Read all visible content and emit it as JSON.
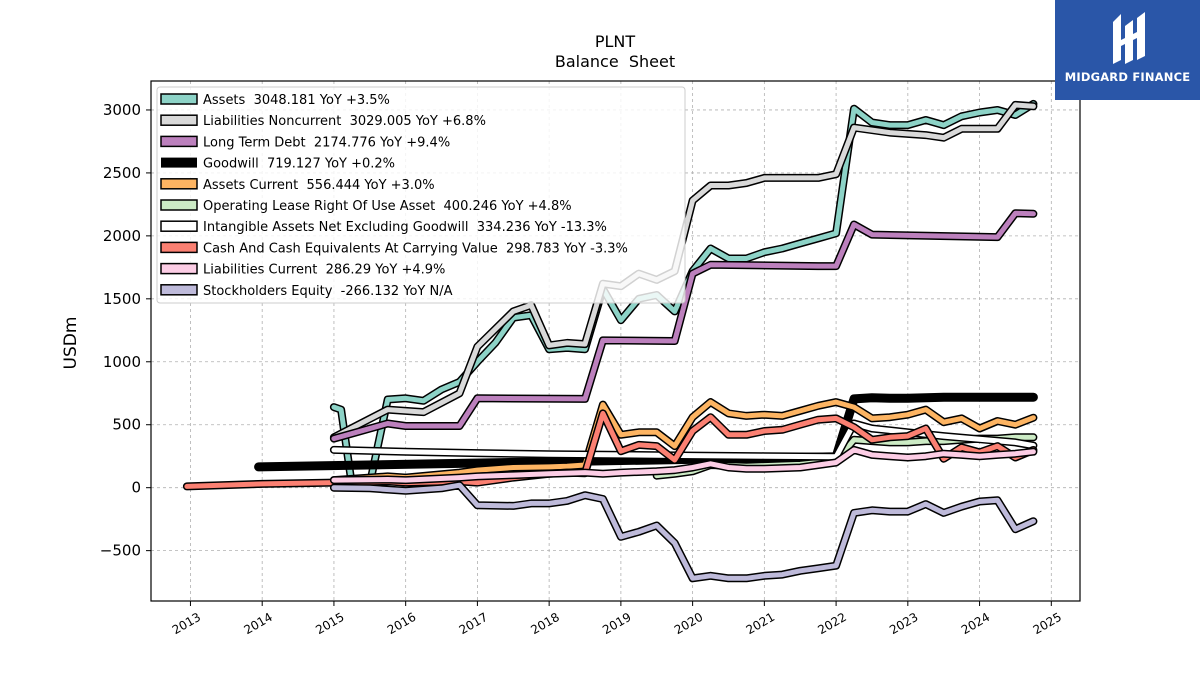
{
  "brand": {
    "name": "MIDGARD FINANCE",
    "bg_color": "#2a56a8"
  },
  "chart_data": {
    "type": "line",
    "title": "PLNT",
    "subtitle": "Balance  Sheet",
    "xlabel": "",
    "ylabel": "USDm",
    "xlim": [
      2012.45,
      2025.4
    ],
    "ylim": [
      -900,
      3230
    ],
    "x_ticks": [
      2013,
      2014,
      2015,
      2016,
      2017,
      2018,
      2019,
      2020,
      2021,
      2022,
      2023,
      2024,
      2025
    ],
    "y_ticks": [
      -500,
      0,
      500,
      1000,
      1500,
      2000,
      2500,
      3000
    ],
    "grid": true,
    "legend_position": "top-left",
    "series": [
      {
        "name": "Assets",
        "legend": "Assets  3048.181 YoY +3.5%",
        "color": "#8dd3c7",
        "width": 5,
        "points": [
          [
            2015.0,
            640
          ],
          [
            2015.1,
            620
          ],
          [
            2015.25,
            20
          ],
          [
            2015.5,
            30
          ],
          [
            2015.75,
            700
          ],
          [
            2016.0,
            710
          ],
          [
            2016.25,
            690
          ],
          [
            2016.5,
            780
          ],
          [
            2016.75,
            840
          ],
          [
            2017.0,
            1000
          ],
          [
            2017.25,
            1150
          ],
          [
            2017.5,
            1350
          ],
          [
            2017.75,
            1370
          ],
          [
            2018.0,
            1100
          ],
          [
            2018.25,
            1110
          ],
          [
            2018.5,
            1100
          ],
          [
            2018.75,
            1580
          ],
          [
            2019.0,
            1330
          ],
          [
            2019.25,
            1500
          ],
          [
            2019.5,
            1530
          ],
          [
            2019.75,
            1400
          ],
          [
            2020.0,
            1720
          ],
          [
            2020.25,
            1900
          ],
          [
            2020.5,
            1820
          ],
          [
            2020.75,
            1820
          ],
          [
            2021.0,
            1870
          ],
          [
            2021.25,
            1900
          ],
          [
            2021.5,
            1940
          ],
          [
            2021.75,
            1980
          ],
          [
            2022.0,
            2020
          ],
          [
            2022.25,
            3010
          ],
          [
            2022.5,
            2900
          ],
          [
            2022.75,
            2880
          ],
          [
            2023.0,
            2880
          ],
          [
            2023.25,
            2920
          ],
          [
            2023.5,
            2880
          ],
          [
            2023.75,
            2950
          ],
          [
            2024.0,
            2980
          ],
          [
            2024.25,
            3000
          ],
          [
            2024.5,
            2960
          ],
          [
            2024.75,
            3048
          ]
        ]
      },
      {
        "name": "Liabilities Noncurrent",
        "legend": "Liabilities Noncurrent  3029.005 YoY +6.8%",
        "color": "#d9d9d9",
        "width": 5,
        "points": [
          [
            2015.0,
            400
          ],
          [
            2015.75,
            620
          ],
          [
            2016.25,
            600
          ],
          [
            2016.75,
            750
          ],
          [
            2017.0,
            1120
          ],
          [
            2017.5,
            1400
          ],
          [
            2017.75,
            1450
          ],
          [
            2018.0,
            1130
          ],
          [
            2018.25,
            1150
          ],
          [
            2018.5,
            1140
          ],
          [
            2018.75,
            1620
          ],
          [
            2019.0,
            1600
          ],
          [
            2019.25,
            1700
          ],
          [
            2019.5,
            1650
          ],
          [
            2019.75,
            1720
          ],
          [
            2020.0,
            2280
          ],
          [
            2020.25,
            2400
          ],
          [
            2020.5,
            2400
          ],
          [
            2020.75,
            2420
          ],
          [
            2021.0,
            2460
          ],
          [
            2021.25,
            2460
          ],
          [
            2021.5,
            2460
          ],
          [
            2021.75,
            2460
          ],
          [
            2022.0,
            2490
          ],
          [
            2022.25,
            2860
          ],
          [
            2022.5,
            2840
          ],
          [
            2022.75,
            2820
          ],
          [
            2023.0,
            2810
          ],
          [
            2023.25,
            2800
          ],
          [
            2023.5,
            2780
          ],
          [
            2023.75,
            2850
          ],
          [
            2024.0,
            2850
          ],
          [
            2024.25,
            2850
          ],
          [
            2024.5,
            3040
          ],
          [
            2024.75,
            3029
          ]
        ]
      },
      {
        "name": "Long Term Debt",
        "legend": "Long Term Debt  2174.776 YoY +9.4%",
        "color": "#bc80bd",
        "width": 5,
        "points": [
          [
            2015.0,
            390
          ],
          [
            2015.75,
            510
          ],
          [
            2016.0,
            490
          ],
          [
            2016.75,
            490
          ],
          [
            2017.0,
            710
          ],
          [
            2018.5,
            705
          ],
          [
            2018.75,
            1170
          ],
          [
            2019.75,
            1165
          ],
          [
            2020.0,
            1700
          ],
          [
            2020.25,
            1770
          ],
          [
            2021.75,
            1760
          ],
          [
            2022.0,
            1760
          ],
          [
            2022.25,
            2090
          ],
          [
            2022.5,
            2010
          ],
          [
            2024.25,
            1990
          ],
          [
            2024.5,
            2180
          ],
          [
            2024.75,
            2175
          ]
        ]
      },
      {
        "name": "Goodwill",
        "legend": "Goodwill  719.127 YoY +0.2%",
        "color": "#000000",
        "width": 9,
        "no_outline": true,
        "points": [
          [
            2013.95,
            165
          ],
          [
            2022.0,
            245
          ],
          [
            2022.25,
            705
          ],
          [
            2022.5,
            715
          ],
          [
            2022.75,
            710
          ],
          [
            2023.0,
            710
          ],
          [
            2023.5,
            718
          ],
          [
            2024.0,
            718
          ],
          [
            2024.75,
            719
          ]
        ]
      },
      {
        "name": "Assets Current",
        "legend": "Assets Current  556.444 YoY +3.0%",
        "color": "#fdb462",
        "width": 5,
        "points": [
          [
            2015.0,
            60
          ],
          [
            2015.75,
            90
          ],
          [
            2016.0,
            80
          ],
          [
            2016.75,
            120
          ],
          [
            2017.0,
            140
          ],
          [
            2017.5,
            160
          ],
          [
            2018.0,
            165
          ],
          [
            2018.25,
            170
          ],
          [
            2018.5,
            180
          ],
          [
            2018.75,
            660
          ],
          [
            2019.0,
            420
          ],
          [
            2019.25,
            440
          ],
          [
            2019.5,
            440
          ],
          [
            2019.75,
            330
          ],
          [
            2020.0,
            560
          ],
          [
            2020.25,
            680
          ],
          [
            2020.5,
            590
          ],
          [
            2020.75,
            570
          ],
          [
            2021.0,
            580
          ],
          [
            2021.25,
            570
          ],
          [
            2021.5,
            610
          ],
          [
            2021.75,
            650
          ],
          [
            2022.0,
            680
          ],
          [
            2022.25,
            640
          ],
          [
            2022.5,
            550
          ],
          [
            2022.75,
            560
          ],
          [
            2023.0,
            580
          ],
          [
            2023.25,
            620
          ],
          [
            2023.5,
            520
          ],
          [
            2023.75,
            550
          ],
          [
            2024.0,
            470
          ],
          [
            2024.25,
            530
          ],
          [
            2024.5,
            500
          ],
          [
            2024.75,
            556
          ]
        ]
      },
      {
        "name": "Operating Lease Right Of Use Asset",
        "legend": "Operating Lease Right Of Use Asset  400.246 YoY +4.8%",
        "color": "#ccebc5",
        "width": 5,
        "points": [
          [
            2019.5,
            95
          ],
          [
            2019.75,
            110
          ],
          [
            2020.0,
            130
          ],
          [
            2020.25,
            180
          ],
          [
            2020.5,
            175
          ],
          [
            2020.75,
            170
          ],
          [
            2021.0,
            175
          ],
          [
            2021.25,
            180
          ],
          [
            2021.5,
            185
          ],
          [
            2021.75,
            200
          ],
          [
            2022.0,
            210
          ],
          [
            2022.25,
            380
          ],
          [
            2022.5,
            370
          ],
          [
            2022.75,
            360
          ],
          [
            2023.0,
            360
          ],
          [
            2023.25,
            370
          ],
          [
            2023.5,
            370
          ],
          [
            2023.75,
            380
          ],
          [
            2024.0,
            390
          ],
          [
            2024.25,
            390
          ],
          [
            2024.5,
            400
          ],
          [
            2024.75,
            400
          ]
        ]
      },
      {
        "name": "Intangible Assets Net Excluding Goodwill",
        "legend": "Intangible Assets Net Excluding Goodwill  334.236 YoY -13.3%",
        "color": "#ffffff",
        "width": 5,
        "points": [
          [
            2015.0,
            300
          ],
          [
            2016.0,
            285
          ],
          [
            2017.0,
            275
          ],
          [
            2018.0,
            265
          ],
          [
            2019.0,
            260
          ],
          [
            2020.0,
            255
          ],
          [
            2021.0,
            250
          ],
          [
            2022.0,
            245
          ],
          [
            2022.25,
            510
          ],
          [
            2022.5,
            470
          ],
          [
            2023.0,
            440
          ],
          [
            2023.5,
            410
          ],
          [
            2024.0,
            385
          ],
          [
            2024.5,
            360
          ],
          [
            2024.75,
            334
          ]
        ]
      },
      {
        "name": "Cash And Cash Equivalents At Carrying Value",
        "legend": "Cash And Cash Equivalents At Carrying Value  298.783 YoY -3.3%",
        "color": "#fb8072",
        "width": 5,
        "points": [
          [
            2012.95,
            10
          ],
          [
            2014.0,
            30
          ],
          [
            2015.0,
            40
          ],
          [
            2015.75,
            50
          ],
          [
            2016.0,
            40
          ],
          [
            2016.75,
            50
          ],
          [
            2017.0,
            40
          ],
          [
            2017.5,
            80
          ],
          [
            2018.0,
            110
          ],
          [
            2018.25,
            120
          ],
          [
            2018.5,
            115
          ],
          [
            2018.75,
            590
          ],
          [
            2019.0,
            290
          ],
          [
            2019.25,
            340
          ],
          [
            2019.5,
            330
          ],
          [
            2019.75,
            220
          ],
          [
            2020.0,
            450
          ],
          [
            2020.25,
            560
          ],
          [
            2020.5,
            420
          ],
          [
            2020.75,
            420
          ],
          [
            2021.0,
            450
          ],
          [
            2021.25,
            460
          ],
          [
            2021.5,
            500
          ],
          [
            2021.75,
            540
          ],
          [
            2022.0,
            550
          ],
          [
            2022.25,
            480
          ],
          [
            2022.5,
            380
          ],
          [
            2022.75,
            400
          ],
          [
            2023.0,
            410
          ],
          [
            2023.25,
            470
          ],
          [
            2023.5,
            230
          ],
          [
            2023.75,
            320
          ],
          [
            2024.0,
            280
          ],
          [
            2024.25,
            330
          ],
          [
            2024.5,
            240
          ],
          [
            2024.75,
            299
          ]
        ]
      },
      {
        "name": "Liabilities Current",
        "legend": "Liabilities Current  286.29 YoY +4.9%",
        "color": "#fccde5",
        "width": 5,
        "points": [
          [
            2015.0,
            60
          ],
          [
            2015.75,
            65
          ],
          [
            2016.0,
            60
          ],
          [
            2016.75,
            80
          ],
          [
            2017.0,
            90
          ],
          [
            2017.5,
            100
          ],
          [
            2018.0,
            110
          ],
          [
            2018.5,
            120
          ],
          [
            2018.75,
            110
          ],
          [
            2019.0,
            120
          ],
          [
            2019.5,
            130
          ],
          [
            2019.75,
            140
          ],
          [
            2020.0,
            160
          ],
          [
            2020.25,
            190
          ],
          [
            2020.5,
            160
          ],
          [
            2020.75,
            150
          ],
          [
            2021.0,
            150
          ],
          [
            2021.5,
            160
          ],
          [
            2021.75,
            180
          ],
          [
            2022.0,
            200
          ],
          [
            2022.25,
            300
          ],
          [
            2022.5,
            260
          ],
          [
            2022.75,
            250
          ],
          [
            2023.0,
            240
          ],
          [
            2023.25,
            250
          ],
          [
            2023.5,
            270
          ],
          [
            2023.75,
            260
          ],
          [
            2024.0,
            250
          ],
          [
            2024.25,
            260
          ],
          [
            2024.5,
            270
          ],
          [
            2024.75,
            286
          ]
        ]
      },
      {
        "name": "Stockholders Equity",
        "legend": "Stockholders Equity  -266.132 YoY N/A",
        "color": "#bebada",
        "width": 5,
        "points": [
          [
            2015.0,
            0
          ],
          [
            2015.5,
            -5
          ],
          [
            2016.0,
            -25
          ],
          [
            2016.5,
            -5
          ],
          [
            2016.75,
            20
          ],
          [
            2017.0,
            -140
          ],
          [
            2017.5,
            -145
          ],
          [
            2017.75,
            -125
          ],
          [
            2018.0,
            -125
          ],
          [
            2018.25,
            -105
          ],
          [
            2018.5,
            -60
          ],
          [
            2018.75,
            -90
          ],
          [
            2019.0,
            -390
          ],
          [
            2019.25,
            -350
          ],
          [
            2019.5,
            -300
          ],
          [
            2019.75,
            -440
          ],
          [
            2020.0,
            -720
          ],
          [
            2020.25,
            -700
          ],
          [
            2020.5,
            -720
          ],
          [
            2020.75,
            -720
          ],
          [
            2021.0,
            -700
          ],
          [
            2021.25,
            -690
          ],
          [
            2021.5,
            -660
          ],
          [
            2021.75,
            -640
          ],
          [
            2022.0,
            -620
          ],
          [
            2022.25,
            -200
          ],
          [
            2022.5,
            -180
          ],
          [
            2022.75,
            -190
          ],
          [
            2023.0,
            -190
          ],
          [
            2023.25,
            -130
          ],
          [
            2023.5,
            -200
          ],
          [
            2023.75,
            -150
          ],
          [
            2024.0,
            -110
          ],
          [
            2024.25,
            -100
          ],
          [
            2024.5,
            -330
          ],
          [
            2024.75,
            -266
          ]
        ]
      }
    ]
  }
}
